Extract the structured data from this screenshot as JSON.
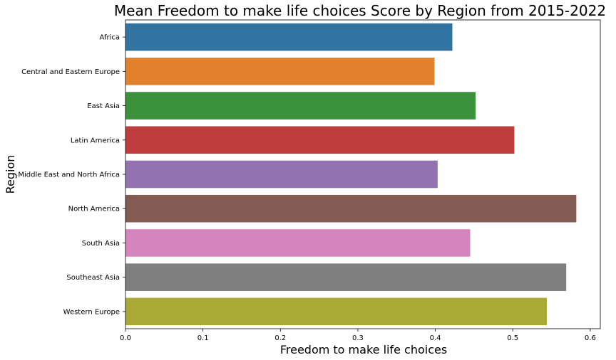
{
  "chart_data": {
    "type": "bar",
    "orientation": "horizontal",
    "title": "Mean Freedom to make life choices Score by Region from 2015-2022",
    "xlabel": "Freedom to make life choices",
    "ylabel": "Region",
    "xlim": [
      0,
      0.613
    ],
    "xticks": [
      "0.0",
      "0.1",
      "0.2",
      "0.3",
      "0.4",
      "0.5",
      "0.6"
    ],
    "grid": false,
    "legend": "none",
    "categories": [
      "Africa",
      "Central and Eastern Europe",
      "East Asia",
      "Latin America",
      "Middle East and North Africa",
      "North America",
      "South Asia",
      "Southeast Asia",
      "Western Europe"
    ],
    "values": [
      0.422,
      0.399,
      0.452,
      0.502,
      0.403,
      0.582,
      0.445,
      0.569,
      0.544
    ],
    "colors": [
      "#3274a1",
      "#e1812c",
      "#3a923a",
      "#c03d3e",
      "#9372b2",
      "#845b53",
      "#d684bd",
      "#7f7f7f",
      "#a9aa35"
    ]
  }
}
